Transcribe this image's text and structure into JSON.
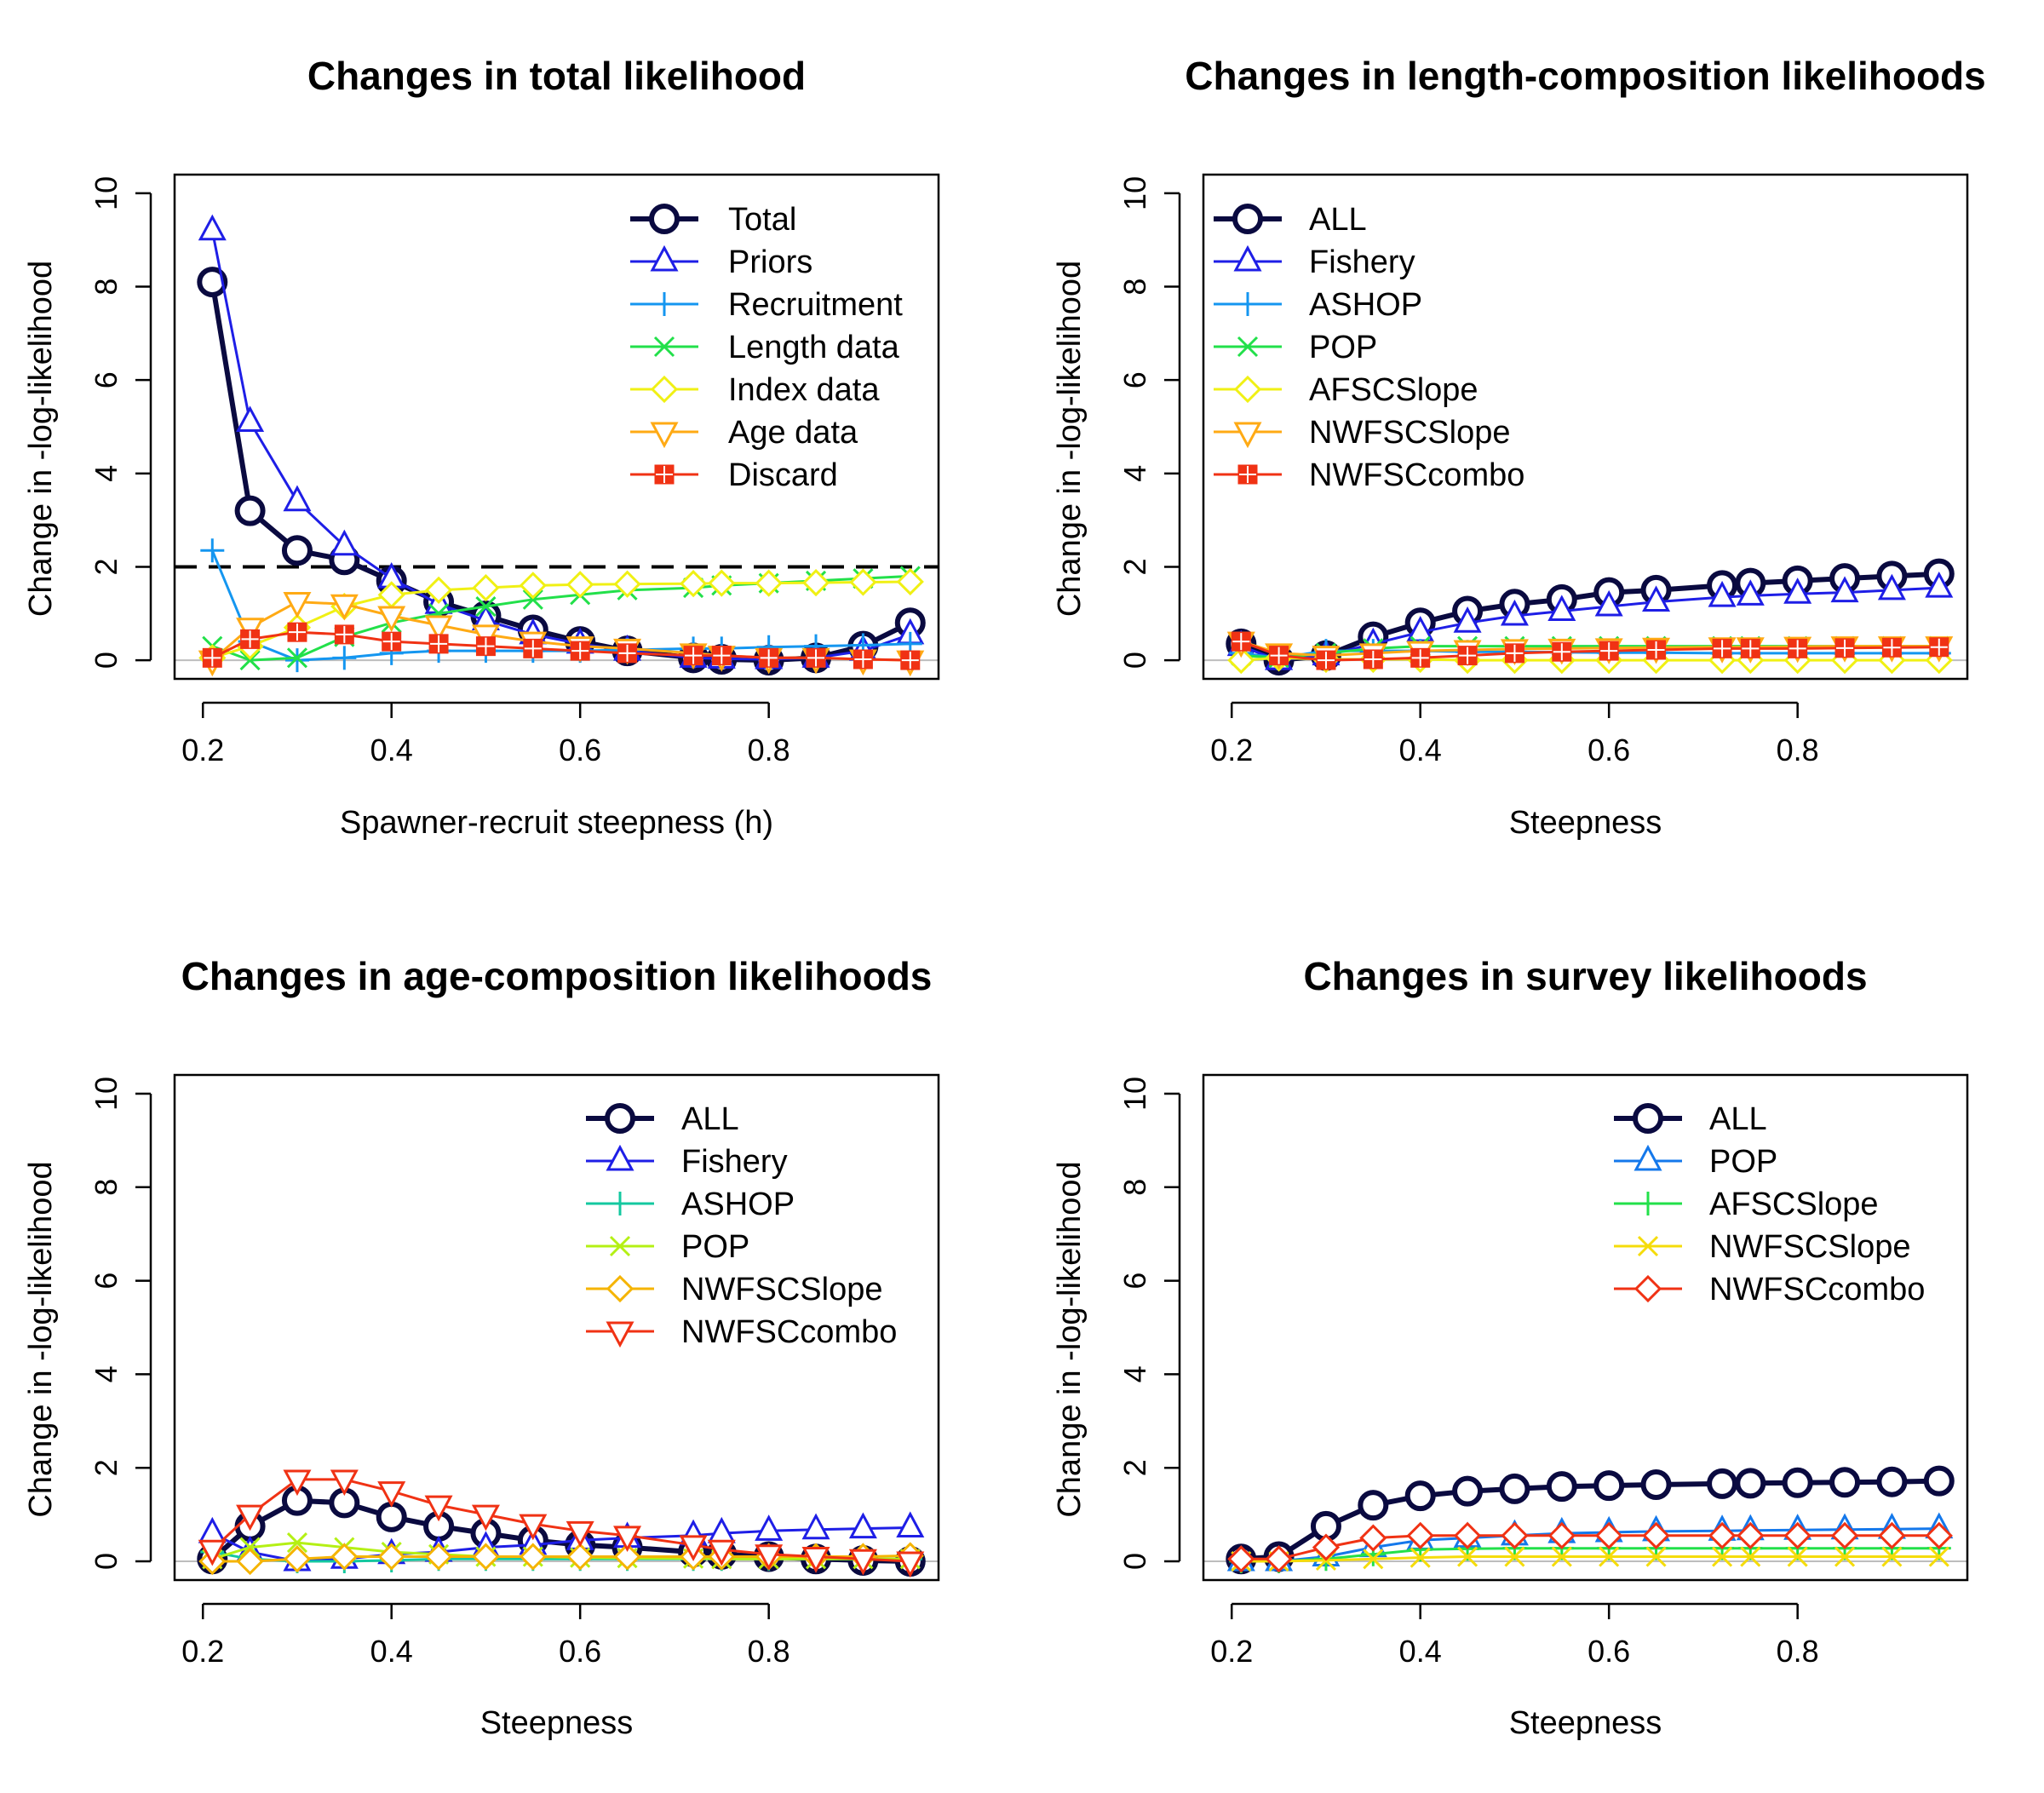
{
  "colors": {
    "navy": "#0a0a40",
    "blue": "#1e1ee6",
    "mid_blue": "#1478eb",
    "sky": "#1496f0",
    "teal": "#14c8a0",
    "green": "#22e04a",
    "yellow_green": "#b4f014",
    "yellow": "#f0f014",
    "gold": "#f5dc0a",
    "amber": "#f5b400",
    "orange": "#ffaa14",
    "red": "#f03214"
  },
  "chart_data": [
    {
      "type": "line",
      "title": "Changes in total likelihood",
      "xlabel": "Spawner-recruit steepness (h)",
      "ylabel": "Change in -log-likelihood",
      "xlim": [
        0.2,
        0.95
      ],
      "ylim": [
        0,
        10
      ],
      "x_ticks": [
        "0.2",
        "0.4",
        "0.6",
        "0.8"
      ],
      "y_ticks": [
        "0",
        "2",
        "4",
        "6",
        "8",
        "10"
      ],
      "reference_line": 2,
      "legend_position": "top-right",
      "x": [
        0.21,
        0.25,
        0.3,
        0.35,
        0.4,
        0.45,
        0.5,
        0.55,
        0.6,
        0.65,
        0.72,
        0.75,
        0.8,
        0.85,
        0.9,
        0.95
      ],
      "series": [
        {
          "name": "Total",
          "color": "#0a0a40",
          "marker": "circle",
          "width": 6,
          "values": [
            8.1,
            3.2,
            2.35,
            2.15,
            1.7,
            1.25,
            0.95,
            0.65,
            0.4,
            0.2,
            0.05,
            0.02,
            0.0,
            0.05,
            0.3,
            0.8
          ]
        },
        {
          "name": "Priors",
          "color": "#1e1ee6",
          "marker": "triangle",
          "width": 3,
          "values": [
            9.2,
            5.1,
            3.4,
            2.45,
            1.75,
            1.2,
            0.85,
            0.55,
            0.35,
            0.2,
            0.05,
            0.03,
            0.02,
            0.05,
            0.2,
            0.55
          ]
        },
        {
          "name": "Recruitment",
          "color": "#1496f0",
          "marker": "plus",
          "width": 3,
          "values": [
            2.35,
            0.4,
            0.0,
            0.05,
            0.15,
            0.2,
            0.2,
            0.2,
            0.2,
            0.22,
            0.25,
            0.25,
            0.28,
            0.3,
            0.32,
            0.35
          ]
        },
        {
          "name": "Length data",
          "color": "#22e04a",
          "marker": "cross",
          "width": 3,
          "values": [
            0.3,
            0.0,
            0.05,
            0.5,
            0.8,
            1.0,
            1.15,
            1.3,
            1.4,
            1.5,
            1.55,
            1.6,
            1.65,
            1.7,
            1.75,
            1.8
          ]
        },
        {
          "name": "Index data",
          "color": "#f0f014",
          "marker": "diamond",
          "width": 3,
          "values": [
            0.05,
            0.3,
            0.7,
            1.15,
            1.4,
            1.5,
            1.55,
            1.6,
            1.62,
            1.63,
            1.64,
            1.65,
            1.65,
            1.66,
            1.67,
            1.68
          ]
        },
        {
          "name": "Age data",
          "color": "#ffaa14",
          "marker": "triangle-down",
          "width": 3,
          "values": [
            0.0,
            0.7,
            1.25,
            1.2,
            0.95,
            0.75,
            0.55,
            0.4,
            0.3,
            0.25,
            0.15,
            0.1,
            0.05,
            0.05,
            0.02,
            0.0
          ]
        },
        {
          "name": "Discard",
          "color": "#f03214",
          "marker": "square-plus",
          "width": 3,
          "values": [
            0.05,
            0.45,
            0.6,
            0.55,
            0.4,
            0.35,
            0.3,
            0.25,
            0.2,
            0.15,
            0.1,
            0.1,
            0.05,
            0.05,
            0.02,
            0.0
          ]
        }
      ]
    },
    {
      "type": "line",
      "title": "Changes in length-composition likelihoods",
      "xlabel": "Steepness",
      "ylabel": "Change in -log-likelihood",
      "xlim": [
        0.2,
        0.95
      ],
      "ylim": [
        0,
        10
      ],
      "x_ticks": [
        "0.2",
        "0.4",
        "0.6",
        "0.8"
      ],
      "y_ticks": [
        "0",
        "2",
        "4",
        "6",
        "8",
        "10"
      ],
      "legend_position": "top-left",
      "x": [
        0.21,
        0.25,
        0.3,
        0.35,
        0.4,
        0.45,
        0.5,
        0.55,
        0.6,
        0.65,
        0.72,
        0.75,
        0.8,
        0.85,
        0.9,
        0.95
      ],
      "series": [
        {
          "name": "ALL",
          "color": "#0a0a40",
          "marker": "circle",
          "width": 6,
          "values": [
            0.35,
            0.0,
            0.1,
            0.5,
            0.8,
            1.05,
            1.2,
            1.3,
            1.45,
            1.5,
            1.6,
            1.65,
            1.7,
            1.75,
            1.8,
            1.85
          ]
        },
        {
          "name": "Fishery",
          "color": "#1e1ee6",
          "marker": "triangle",
          "width": 3,
          "values": [
            0.3,
            0.0,
            0.1,
            0.35,
            0.6,
            0.8,
            0.95,
            1.05,
            1.15,
            1.25,
            1.35,
            1.38,
            1.42,
            1.45,
            1.5,
            1.55
          ]
        },
        {
          "name": "ASHOP",
          "color": "#1496f0",
          "marker": "plus",
          "width": 3,
          "values": [
            0.15,
            0.05,
            0.2,
            0.2,
            0.2,
            0.18,
            0.18,
            0.17,
            0.16,
            0.16,
            0.15,
            0.15,
            0.15,
            0.15,
            0.15,
            0.15
          ]
        },
        {
          "name": "POP",
          "color": "#22e04a",
          "marker": "cross",
          "width": 3,
          "values": [
            0.1,
            0.05,
            0.15,
            0.25,
            0.3,
            0.3,
            0.3,
            0.3,
            0.3,
            0.3,
            0.3,
            0.3,
            0.3,
            0.3,
            0.3,
            0.3
          ]
        },
        {
          "name": "AFSCSlope",
          "color": "#f0f014",
          "marker": "diamond",
          "width": 3,
          "values": [
            0.0,
            0.05,
            0.02,
            0.02,
            0.02,
            0.0,
            0.0,
            0.0,
            0.0,
            0.0,
            0.0,
            0.0,
            0.0,
            0.0,
            0.0,
            0.0
          ]
        },
        {
          "name": "NWFSCSlope",
          "color": "#ffaa14",
          "marker": "triangle-down",
          "width": 3,
          "values": [
            0.4,
            0.15,
            0.1,
            0.15,
            0.2,
            0.22,
            0.24,
            0.25,
            0.26,
            0.27,
            0.28,
            0.28,
            0.29,
            0.3,
            0.3,
            0.3
          ]
        },
        {
          "name": "NWFSCcombo",
          "color": "#f03214",
          "marker": "square-plus",
          "width": 3,
          "values": [
            0.4,
            0.1,
            0.0,
            0.02,
            0.05,
            0.1,
            0.15,
            0.18,
            0.2,
            0.22,
            0.25,
            0.25,
            0.25,
            0.26,
            0.27,
            0.28
          ]
        }
      ]
    },
    {
      "type": "line",
      "title": "Changes in age-composition likelihoods",
      "xlabel": "Steepness",
      "ylabel": "Change in -log-likelihood",
      "xlim": [
        0.2,
        0.95
      ],
      "ylim": [
        0,
        10
      ],
      "x_ticks": [
        "0.2",
        "0.4",
        "0.6",
        "0.8"
      ],
      "y_ticks": [
        "0",
        "2",
        "4",
        "6",
        "8",
        "10"
      ],
      "legend_position": "top-right",
      "x": [
        0.21,
        0.25,
        0.3,
        0.35,
        0.4,
        0.45,
        0.5,
        0.55,
        0.6,
        0.65,
        0.72,
        0.75,
        0.8,
        0.85,
        0.9,
        0.95
      ],
      "series": [
        {
          "name": "ALL",
          "color": "#0a0a40",
          "marker": "circle",
          "width": 6,
          "values": [
            0.05,
            0.75,
            1.3,
            1.25,
            0.95,
            0.75,
            0.6,
            0.45,
            0.35,
            0.3,
            0.2,
            0.15,
            0.1,
            0.05,
            0.02,
            0.0
          ]
        },
        {
          "name": "Fishery",
          "color": "#1e1ee6",
          "marker": "triangle",
          "width": 3,
          "values": [
            0.6,
            0.2,
            0.0,
            0.05,
            0.15,
            0.2,
            0.3,
            0.35,
            0.45,
            0.5,
            0.55,
            0.6,
            0.65,
            0.68,
            0.7,
            0.72
          ]
        },
        {
          "name": "ASHOP",
          "color": "#14c8a0",
          "marker": "plus",
          "width": 3,
          "values": [
            0.2,
            0.05,
            0.0,
            0.0,
            0.02,
            0.05,
            0.05,
            0.05,
            0.05,
            0.05,
            0.05,
            0.05,
            0.05,
            0.05,
            0.05,
            0.05
          ]
        },
        {
          "name": "POP",
          "color": "#b4f014",
          "marker": "cross",
          "width": 3,
          "values": [
            0.05,
            0.3,
            0.4,
            0.3,
            0.2,
            0.15,
            0.1,
            0.1,
            0.08,
            0.07,
            0.06,
            0.05,
            0.05,
            0.05,
            0.05,
            0.05
          ]
        },
        {
          "name": "NWFSCSlope",
          "color": "#f5b400",
          "marker": "diamond",
          "width": 3,
          "values": [
            0.0,
            0.0,
            0.05,
            0.1,
            0.1,
            0.1,
            0.1,
            0.1,
            0.1,
            0.1,
            0.1,
            0.1,
            0.1,
            0.1,
            0.1,
            0.12
          ]
        },
        {
          "name": "NWFSCcombo",
          "color": "#f03214",
          "marker": "triangle-down",
          "width": 3,
          "values": [
            0.25,
            1.0,
            1.75,
            1.75,
            1.5,
            1.2,
            1.0,
            0.8,
            0.65,
            0.55,
            0.35,
            0.25,
            0.15,
            0.1,
            0.05,
            0.0
          ]
        }
      ]
    },
    {
      "type": "line",
      "title": "Changes in survey likelihoods",
      "xlabel": "Steepness",
      "ylabel": "Change in -log-likelihood",
      "xlim": [
        0.2,
        0.95
      ],
      "ylim": [
        0,
        10
      ],
      "x_ticks": [
        "0.2",
        "0.4",
        "0.6",
        "0.8"
      ],
      "y_ticks": [
        "0",
        "2",
        "4",
        "6",
        "8",
        "10"
      ],
      "legend_position": "top-right",
      "x": [
        0.21,
        0.25,
        0.3,
        0.35,
        0.4,
        0.45,
        0.5,
        0.55,
        0.6,
        0.65,
        0.72,
        0.75,
        0.8,
        0.85,
        0.9,
        0.95
      ],
      "series": [
        {
          "name": "ALL",
          "color": "#0a0a40",
          "marker": "circle",
          "width": 6,
          "values": [
            0.05,
            0.1,
            0.75,
            1.2,
            1.4,
            1.5,
            1.55,
            1.6,
            1.62,
            1.64,
            1.66,
            1.67,
            1.68,
            1.69,
            1.7,
            1.72
          ]
        },
        {
          "name": "POP",
          "color": "#1478eb",
          "marker": "triangle",
          "width": 3,
          "values": [
            0.0,
            0.0,
            0.1,
            0.3,
            0.45,
            0.5,
            0.55,
            0.6,
            0.62,
            0.64,
            0.65,
            0.66,
            0.67,
            0.68,
            0.69,
            0.7
          ]
        },
        {
          "name": "AFSCSlope",
          "color": "#22e04a",
          "marker": "plus",
          "width": 3,
          "values": [
            0.0,
            0.0,
            0.05,
            0.15,
            0.25,
            0.27,
            0.28,
            0.28,
            0.28,
            0.28,
            0.28,
            0.28,
            0.28,
            0.28,
            0.28,
            0.28
          ]
        },
        {
          "name": "NWFSCSlope",
          "color": "#f5dc0a",
          "marker": "cross",
          "width": 3,
          "values": [
            0.0,
            0.0,
            0.02,
            0.05,
            0.08,
            0.1,
            0.1,
            0.1,
            0.1,
            0.1,
            0.1,
            0.1,
            0.1,
            0.1,
            0.1,
            0.1
          ]
        },
        {
          "name": "NWFSCcombo",
          "color": "#f03214",
          "marker": "diamond",
          "width": 3,
          "values": [
            0.05,
            0.05,
            0.3,
            0.5,
            0.55,
            0.55,
            0.55,
            0.55,
            0.55,
            0.55,
            0.55,
            0.55,
            0.55,
            0.55,
            0.55,
            0.55
          ]
        }
      ]
    }
  ]
}
